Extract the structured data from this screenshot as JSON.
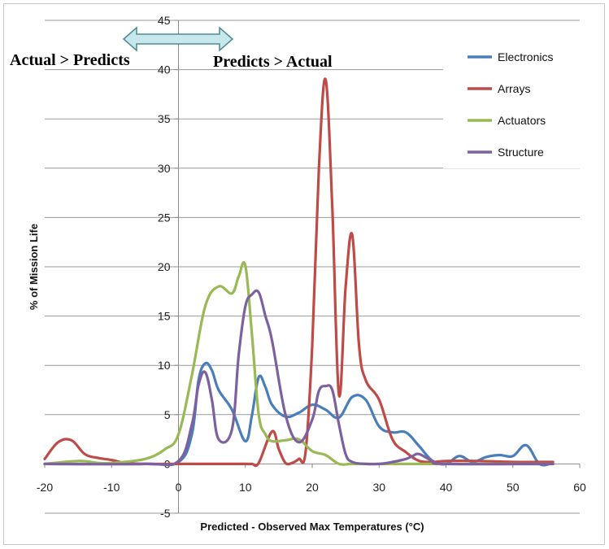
{
  "chart_data": {
    "type": "line",
    "xlabel": "Predicted - Observed Max  Temperatures (°C)",
    "ylabel": "% of Mission Life",
    "xlim": [
      -20,
      60
    ],
    "ylim": [
      -5,
      45
    ],
    "x_ticks": [
      -20,
      -10,
      0,
      10,
      20,
      30,
      40,
      50,
      60
    ],
    "y_ticks": [
      -5,
      0,
      5,
      10,
      15,
      20,
      25,
      30,
      35,
      40,
      45
    ],
    "grid": "horizontal",
    "legend_position": "top-right",
    "annotations": {
      "left": "Actual > Predicts",
      "right": "Predicts > Actual"
    },
    "series": [
      {
        "name": "Electronics",
        "color": "#4a7ebb",
        "x": [
          -20,
          -5,
          0,
          2,
          3,
          4,
          5,
          6,
          8,
          10,
          11,
          12,
          13,
          14,
          16,
          18,
          20,
          22,
          24,
          26,
          28,
          30,
          32,
          34,
          36,
          38,
          40,
          42,
          44,
          46,
          48,
          50,
          52,
          54,
          56
        ],
        "y": [
          0,
          0,
          0.2,
          3,
          8.5,
          10.2,
          9.5,
          7.5,
          5.5,
          2.3,
          5,
          8.8,
          7.8,
          6,
          4.8,
          5.2,
          6,
          5.5,
          4.7,
          6.8,
          6.5,
          3.8,
          3.2,
          3.2,
          1.8,
          0.3,
          0,
          0.8,
          0.2,
          0.7,
          0.9,
          0.8,
          1.9,
          0,
          0.1
        ]
      },
      {
        "name": "Arrays",
        "color": "#be4b48",
        "x": [
          -20,
          -18,
          -16,
          -14,
          -12,
          -10,
          -8,
          -5,
          0,
          5,
          10,
          11,
          12,
          14,
          15,
          16,
          17,
          18,
          19,
          20,
          21,
          22,
          23,
          24,
          25,
          26,
          27,
          28,
          30,
          32,
          34,
          36,
          38,
          40,
          45,
          50,
          56
        ],
        "y": [
          0.5,
          2.2,
          2.4,
          1,
          0.6,
          0.4,
          0.1,
          0,
          0,
          0,
          0,
          0,
          0.1,
          3.3,
          1.5,
          0.1,
          0.1,
          0.5,
          1.2,
          12,
          30,
          39,
          26,
          7,
          18,
          23.2,
          12,
          8.5,
          6.5,
          2.5,
          1.2,
          0.3,
          0.2,
          0.3,
          0.3,
          0.2,
          0.2
        ]
      },
      {
        "name": "Actuators",
        "color": "#98b954",
        "x": [
          -20,
          -15,
          -12,
          -10,
          -5,
          -2,
          0,
          2,
          4,
          6,
          8,
          9,
          10,
          11,
          12,
          13,
          14,
          16,
          18,
          20,
          22,
          24,
          26,
          30,
          40,
          56
        ],
        "y": [
          0,
          0.3,
          0.1,
          0.1,
          0.5,
          1.5,
          3,
          9,
          16,
          18,
          17.3,
          19,
          20.1,
          13,
          5,
          3,
          2.3,
          2.4,
          2.5,
          1.3,
          0.9,
          0,
          0,
          0,
          0,
          0
        ]
      },
      {
        "name": "Structure",
        "color": "#7d60a0",
        "x": [
          -20,
          -5,
          0,
          2,
          3,
          4,
          5,
          6,
          8,
          9,
          10,
          11,
          12,
          13,
          14,
          16,
          18,
          20,
          21,
          22,
          23,
          24,
          25,
          26,
          28,
          30,
          32,
          34,
          35,
          36,
          38,
          40,
          56
        ],
        "y": [
          0,
          0,
          0.3,
          4,
          8,
          9.3,
          6.5,
          2.5,
          3.5,
          11,
          16,
          17.2,
          17.4,
          15,
          12.5,
          5,
          2.2,
          4.5,
          7.4,
          7.9,
          7.5,
          4,
          1,
          0.2,
          0,
          0,
          0.2,
          0.5,
          0.8,
          1,
          0.3,
          0,
          0
        ]
      }
    ]
  }
}
